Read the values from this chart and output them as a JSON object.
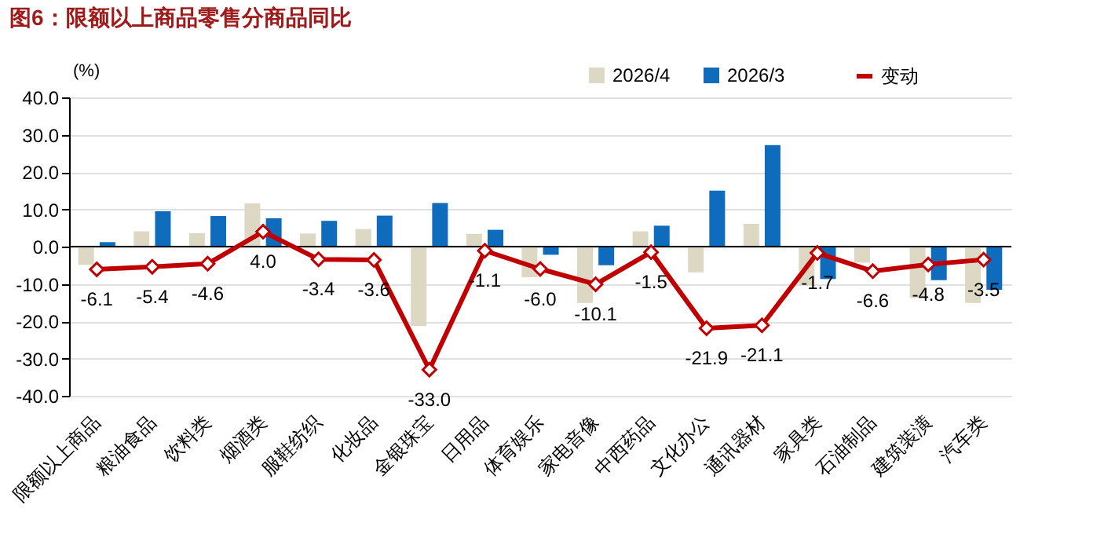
{
  "chart_data": {
    "type": "bar",
    "title": "图6：限额以上商品零售分商品同比",
    "ylabel": "(%)",
    "categories": [
      "限额以上商品",
      "粮油食品",
      "饮料类",
      "烟酒类",
      "服鞋纺织",
      "化妆品",
      "金银珠宝",
      "日用品",
      "体育娱乐",
      "家电音像",
      "中西药品",
      "文化办公",
      "通讯器材",
      "家具类",
      "石油制品",
      "建筑装潢",
      "汽车类"
    ],
    "series": [
      {
        "name": "2026/4",
        "color": "#ddd8c4",
        "values": [
          -4.9,
          4.1,
          3.6,
          11.6,
          3.5,
          4.7,
          -21.3,
          3.4,
          -8.2,
          -15.1,
          4.1,
          -6.9,
          6.1,
          -10.4,
          -4.3,
          -13.8,
          -15.1
        ]
      },
      {
        "name": "2026/3",
        "color": "#0f6cbd",
        "values": [
          1.2,
          9.5,
          8.2,
          7.6,
          6.9,
          8.3,
          11.7,
          4.5,
          -2.2,
          -5.0,
          5.6,
          15.0,
          27.2,
          -8.7,
          null,
          -9.0,
          -11.6
        ]
      },
      {
        "name": "变动",
        "type": "line",
        "color": "#c00000",
        "marker": "diamond",
        "data_labels": true,
        "value_labels": [
          "-6.1",
          "-5.4",
          "-4.6",
          "4.0",
          "-3.4",
          "-3.6",
          "-33.0",
          "-1.1",
          "-6.0",
          "-10.1",
          "-1.5",
          "-21.9",
          "-21.1",
          "-1.7",
          "-6.6",
          "-4.8",
          "-3.5"
        ],
        "values": [
          -6.1,
          -5.4,
          -4.6,
          4.0,
          -3.4,
          -3.6,
          -33.0,
          -1.1,
          -6.0,
          -10.1,
          -1.5,
          -21.9,
          -21.1,
          -1.7,
          -6.6,
          -4.8,
          -3.5
        ]
      }
    ],
    "ylim": [
      -40,
      40
    ],
    "yticks": [
      {
        "value": -40,
        "label": "-40.0"
      },
      {
        "value": -30,
        "label": "-30.0"
      },
      {
        "value": -20,
        "label": "-20.0"
      },
      {
        "value": -10,
        "label": "-10.0"
      },
      {
        "value": 0,
        "label": "0.0"
      },
      {
        "value": 10,
        "label": "10.0"
      },
      {
        "value": 20,
        "label": "20.0"
      },
      {
        "value": 30,
        "label": "30.0"
      },
      {
        "value": 40,
        "label": "40.0"
      }
    ],
    "grid": "y",
    "legend": "top right"
  }
}
